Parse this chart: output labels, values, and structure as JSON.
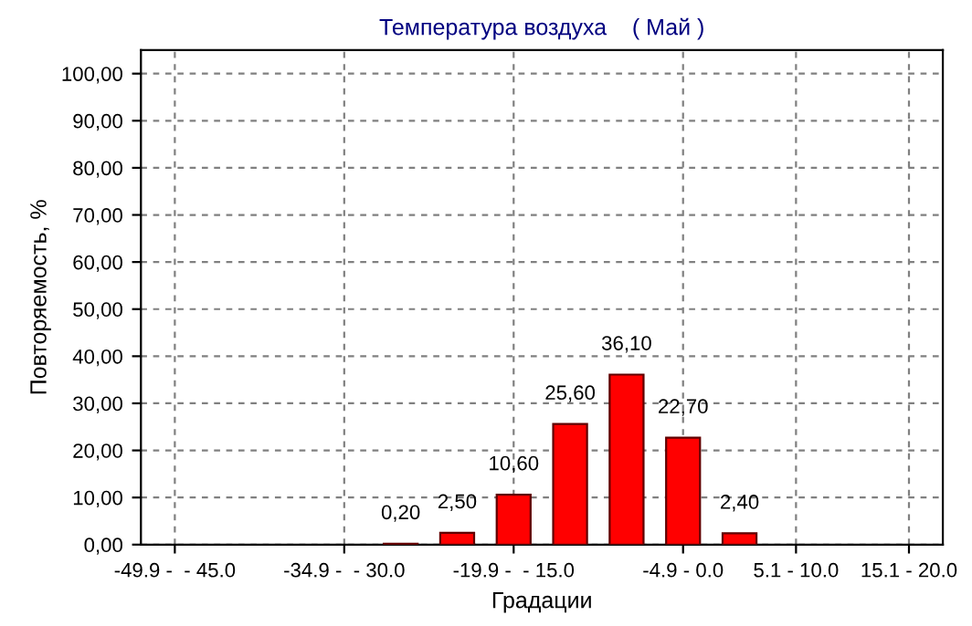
{
  "chart_data": {
    "type": "bar",
    "title": "Температура воздуха    ( Май )",
    "xlabel": "Градации",
    "ylabel": "Повторяемость, %",
    "categories": [
      "-49.9 -  - 45.0",
      null,
      null,
      "-34.9 -  - 30.0",
      null,
      null,
      "-19.9 -  - 15.0",
      null,
      null,
      "-4.9 - 0.0",
      null,
      "5.1 - 10.0",
      null,
      "15.1 - 20.0"
    ],
    "values": [
      0,
      0,
      0,
      0,
      0.2,
      2.5,
      10.6,
      25.6,
      36.1,
      22.7,
      2.4,
      0,
      0,
      0
    ],
    "value_labels": [
      null,
      null,
      null,
      null,
      "0,20",
      "2,50",
      "10,60",
      "25,60",
      "36,10",
      "22,70",
      "2,40",
      null,
      null,
      null
    ],
    "color": "#ff0000",
    "ylim": [
      0,
      105
    ],
    "yticks": [
      {
        "value": 0,
        "label": "0,00"
      },
      {
        "value": 10,
        "label": "10,00"
      },
      {
        "value": 20,
        "label": "20,00"
      },
      {
        "value": 30,
        "label": "30,00"
      },
      {
        "value": 40,
        "label": "40,00"
      },
      {
        "value": 50,
        "label": "50,00"
      },
      {
        "value": 60,
        "label": "60,00"
      },
      {
        "value": 70,
        "label": "70,00"
      },
      {
        "value": 80,
        "label": "80,00"
      },
      {
        "value": 90,
        "label": "90,00"
      },
      {
        "value": 100,
        "label": "100,00"
      }
    ],
    "grid": true,
    "legend": false
  }
}
